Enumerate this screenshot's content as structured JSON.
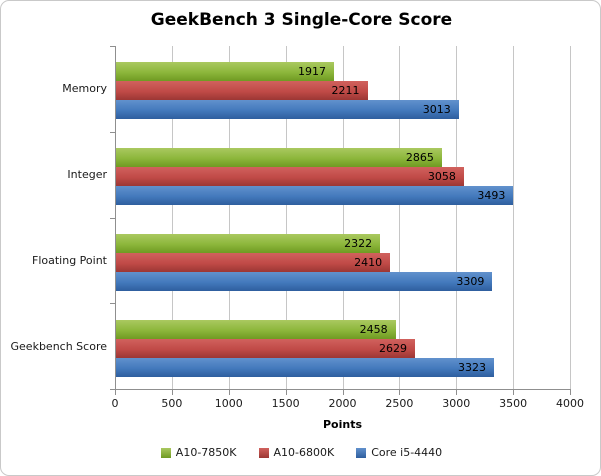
{
  "chart_data": {
    "type": "bar",
    "orientation": "horizontal",
    "title": "GeekBench 3 Single-Core Score",
    "xlabel": "Points",
    "categories": [
      "Memory",
      "Integer",
      "Floating Point",
      "Geekbench Score"
    ],
    "series": [
      {
        "name": "A10-7850K",
        "color": "#8cb63b",
        "color_light": "#aac960",
        "color_dark": "#6f9a22",
        "values": [
          1917,
          2865,
          2322,
          2458
        ]
      },
      {
        "name": "A10-6800K",
        "color": "#c04a47",
        "color_light": "#d1615d",
        "color_dark": "#9c3734",
        "values": [
          2211,
          3058,
          2410,
          2629
        ]
      },
      {
        "name": "Core i5-4440",
        "color": "#4379bc",
        "color_light": "#6191cd",
        "color_dark": "#2e5e9e",
        "values": [
          3013,
          3493,
          3309,
          3323
        ]
      }
    ],
    "xlim": [
      0,
      4000
    ],
    "xticks": [
      0,
      500,
      1000,
      1500,
      2000,
      2500,
      3000,
      3500,
      4000
    ],
    "grid": true,
    "legend_position": "bottom",
    "data_labels": true
  },
  "style_colors": {
    "grid": "#c6c6c6",
    "axis": "#8f8f8f",
    "frame_border": "#c9c9c9",
    "text": "#1a1a1a"
  }
}
